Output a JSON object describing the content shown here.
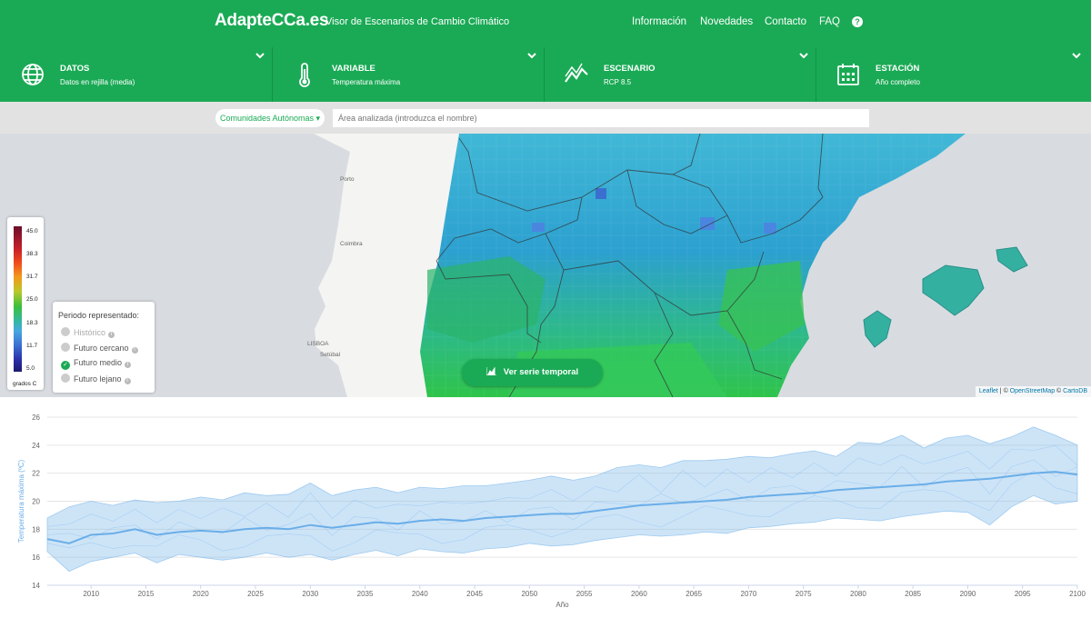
{
  "header": {
    "brand": "AdapteCCa.es",
    "subtitle": "Visor de Escenarios de Cambio Climático",
    "nav": [
      "Información",
      "Novedades",
      "Contacto",
      "FAQ"
    ],
    "help_glyph": "?"
  },
  "selectors": [
    {
      "label": "DATOS",
      "value": "Datos en rejilla (media)",
      "icon": "globe-icon"
    },
    {
      "label": "VARIABLE",
      "value": "Temperatura máxima",
      "icon": "thermometer-icon"
    },
    {
      "label": "ESCENARIO",
      "value": "RCP 8.5",
      "icon": "trend-line-icon"
    },
    {
      "label": "ESTACIÓN",
      "value": "Año completo",
      "icon": "calendar-icon"
    }
  ],
  "search": {
    "region_select": "Comunidades Autónomas ▾",
    "placeholder": "Área analizada (introduzca el nombre)"
  },
  "map": {
    "cities": [
      "Porto",
      "Coimbra",
      "LISBOA",
      "Setúbal"
    ],
    "legend": {
      "ticks": [
        "45.0",
        "38.3",
        "31.7",
        "25.0",
        "18.3",
        "11.7",
        "5.0"
      ],
      "unit": "grados C"
    },
    "periods": {
      "title": "Periodo representado:",
      "items": [
        {
          "label": "Histórico",
          "state": "disabled"
        },
        {
          "label": "Futuro cercano",
          "state": "off"
        },
        {
          "label": "Futuro medio",
          "state": "on"
        },
        {
          "label": "Futuro lejano",
          "state": "off"
        }
      ]
    },
    "timeseries_button": "Ver serie temporal",
    "attribution": {
      "leaflet": "Leaflet",
      "sep": " | © ",
      "osm": "OpenStreetMap",
      "sep2": " © ",
      "carto": "CartoDB"
    }
  },
  "chart_data": {
    "type": "area",
    "title": "",
    "xlabel": "Año",
    "ylabel": "Temperatura máxima (ºC)",
    "xlim": [
      2006,
      2100
    ],
    "ylim": [
      14,
      26
    ],
    "xticks": [
      2010,
      2015,
      2020,
      2025,
      2030,
      2035,
      2040,
      2045,
      2050,
      2055,
      2060,
      2065,
      2070,
      2075,
      2080,
      2085,
      2090,
      2095,
      2100
    ],
    "yticks": [
      14,
      16,
      18,
      20,
      22,
      24,
      26
    ],
    "grid": true,
    "color": "#6fb1e8",
    "x": [
      2006,
      2008,
      2010,
      2012,
      2014,
      2016,
      2018,
      2020,
      2022,
      2024,
      2026,
      2028,
      2030,
      2032,
      2034,
      2036,
      2038,
      2040,
      2042,
      2044,
      2046,
      2048,
      2050,
      2052,
      2054,
      2056,
      2058,
      2060,
      2062,
      2064,
      2066,
      2068,
      2070,
      2072,
      2074,
      2076,
      2078,
      2080,
      2082,
      2084,
      2086,
      2088,
      2090,
      2092,
      2094,
      2096,
      2098,
      2100
    ],
    "series": [
      {
        "role": "mean",
        "values": [
          17.3,
          17.0,
          17.6,
          17.7,
          18.0,
          17.6,
          17.8,
          17.9,
          17.8,
          18.0,
          18.1,
          18.0,
          18.3,
          18.1,
          18.3,
          18.5,
          18.4,
          18.6,
          18.7,
          18.6,
          18.8,
          18.9,
          19.0,
          19.1,
          19.1,
          19.3,
          19.5,
          19.7,
          19.8,
          19.9,
          20.0,
          20.1,
          20.3,
          20.4,
          20.5,
          20.6,
          20.8,
          20.9,
          21.0,
          21.1,
          21.2,
          21.4,
          21.5,
          21.6,
          21.8,
          22.0,
          22.1,
          21.9
        ]
      },
      {
        "role": "max",
        "values": [
          18.8,
          19.6,
          20.0,
          19.7,
          20.1,
          19.9,
          20.0,
          20.3,
          20.1,
          20.6,
          20.4,
          20.5,
          21.3,
          20.4,
          20.8,
          21.0,
          20.6,
          21.0,
          20.9,
          21.1,
          21.1,
          21.3,
          21.5,
          21.8,
          21.5,
          21.8,
          22.4,
          22.6,
          22.4,
          22.9,
          22.9,
          23.0,
          23.2,
          23.1,
          23.4,
          23.6,
          23.2,
          24.2,
          24.1,
          24.7,
          23.8,
          24.5,
          24.7,
          24.1,
          24.6,
          25.3,
          24.7,
          24.0
        ]
      },
      {
        "role": "min",
        "values": [
          16.4,
          15.0,
          15.7,
          16.0,
          16.3,
          15.6,
          16.2,
          16.0,
          15.8,
          16.0,
          16.3,
          16.0,
          16.2,
          15.8,
          16.2,
          16.5,
          16.1,
          16.6,
          16.4,
          16.3,
          16.6,
          16.7,
          17.0,
          16.8,
          16.9,
          17.2,
          17.4,
          17.6,
          17.5,
          17.6,
          17.8,
          17.7,
          18.1,
          18.2,
          18.4,
          18.5,
          18.8,
          18.7,
          18.6,
          18.9,
          19.1,
          19.3,
          19.2,
          18.3,
          19.6,
          20.4,
          19.8,
          20.0
        ]
      }
    ]
  }
}
